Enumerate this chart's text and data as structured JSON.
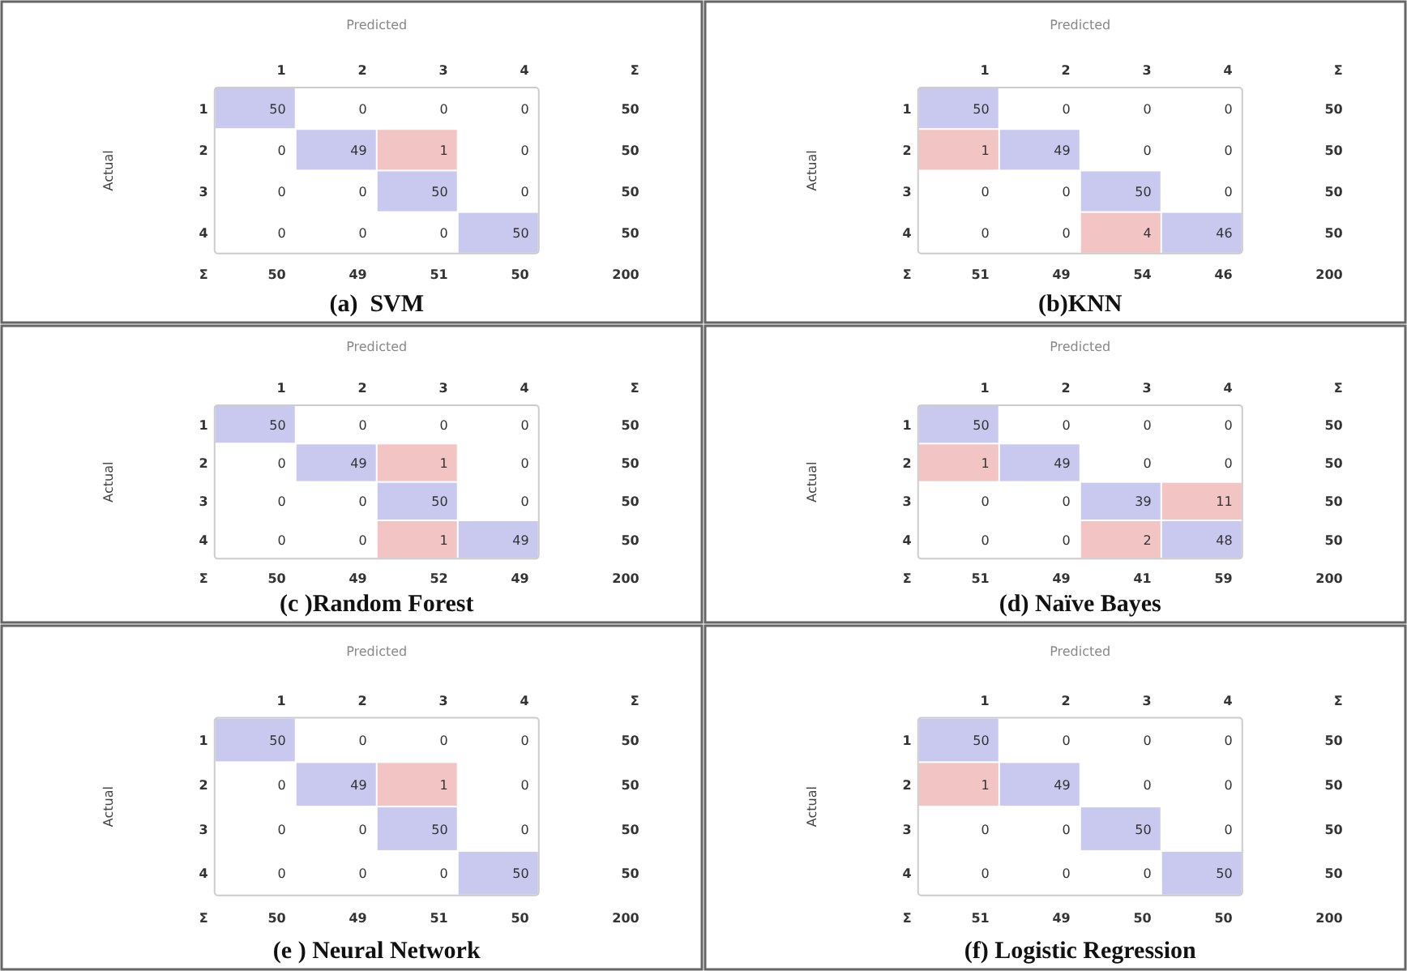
{
  "chart_data": [
    {
      "type": "heatmap",
      "data_labels": true,
      "title": "(a)  SVM",
      "xlabel": "Predicted",
      "ylabel": "Actual",
      "categories": [
        "1",
        "2",
        "3",
        "4",
        "Σ"
      ],
      "y_categories": [
        "1",
        "2",
        "3",
        "4",
        "Σ"
      ],
      "cells": [
        [
          50,
          0,
          0,
          0,
          50
        ],
        [
          0,
          49,
          1,
          0,
          50
        ],
        [
          0,
          0,
          50,
          0,
          50
        ],
        [
          0,
          0,
          0,
          50,
          50
        ],
        [
          50,
          49,
          51,
          50,
          200
        ]
      ]
    },
    {
      "type": "heatmap",
      "data_labels": true,
      "title": "(b)KNN",
      "xlabel": "Predicted",
      "ylabel": "Actual",
      "categories": [
        "1",
        "2",
        "3",
        "4",
        "Σ"
      ],
      "y_categories": [
        "1",
        "2",
        "3",
        "4",
        "Σ"
      ],
      "cells": [
        [
          50,
          0,
          0,
          0,
          50
        ],
        [
          1,
          49,
          0,
          0,
          50
        ],
        [
          0,
          0,
          50,
          0,
          50
        ],
        [
          0,
          0,
          4,
          46,
          50
        ],
        [
          51,
          49,
          54,
          46,
          200
        ]
      ]
    },
    {
      "type": "heatmap",
      "data_labels": true,
      "title": "(c )Random Forest",
      "xlabel": "Predicted",
      "ylabel": "Actual",
      "categories": [
        "1",
        "2",
        "3",
        "4",
        "Σ"
      ],
      "y_categories": [
        "1",
        "2",
        "3",
        "4",
        "Σ"
      ],
      "cells": [
        [
          50,
          0,
          0,
          0,
          50
        ],
        [
          0,
          49,
          1,
          0,
          50
        ],
        [
          0,
          0,
          50,
          0,
          50
        ],
        [
          0,
          0,
          1,
          49,
          50
        ],
        [
          50,
          49,
          52,
          49,
          200
        ]
      ]
    },
    {
      "type": "heatmap",
      "data_labels": true,
      "title": "(d) Naïve Bayes",
      "xlabel": "Predicted",
      "ylabel": "Actual",
      "categories": [
        "1",
        "2",
        "3",
        "4",
        "Σ"
      ],
      "y_categories": [
        "1",
        "2",
        "3",
        "4",
        "Σ"
      ],
      "cells": [
        [
          50,
          0,
          0,
          0,
          50
        ],
        [
          1,
          49,
          0,
          0,
          50
        ],
        [
          0,
          0,
          39,
          11,
          50
        ],
        [
          0,
          0,
          2,
          48,
          50
        ],
        [
          51,
          49,
          41,
          59,
          200
        ]
      ]
    },
    {
      "type": "heatmap",
      "data_labels": true,
      "title": "(e ) Neural Network",
      "xlabel": "Predicted",
      "ylabel": "Actual",
      "categories": [
        "1",
        "2",
        "3",
        "4",
        "Σ"
      ],
      "y_categories": [
        "1",
        "2",
        "3",
        "4",
        "Σ"
      ],
      "cells": [
        [
          50,
          0,
          0,
          0,
          50
        ],
        [
          0,
          49,
          1,
          0,
          50
        ],
        [
          0,
          0,
          50,
          0,
          50
        ],
        [
          0,
          0,
          0,
          50,
          50
        ],
        [
          50,
          49,
          51,
          50,
          200
        ]
      ]
    },
    {
      "type": "heatmap",
      "data_labels": true,
      "title": "(f) Logistic Regression",
      "xlabel": "Predicted",
      "ylabel": "Actual",
      "categories": [
        "1",
        "2",
        "3",
        "4",
        "Σ"
      ],
      "y_categories": [
        "1",
        "2",
        "3",
        "4",
        "Σ"
      ],
      "cells": [
        [
          50,
          0,
          0,
          0,
          50
        ],
        [
          1,
          49,
          0,
          0,
          50
        ],
        [
          0,
          0,
          50,
          0,
          50
        ],
        [
          0,
          0,
          0,
          50,
          50
        ],
        [
          51,
          49,
          50,
          50,
          200
        ]
      ]
    }
  ]
}
